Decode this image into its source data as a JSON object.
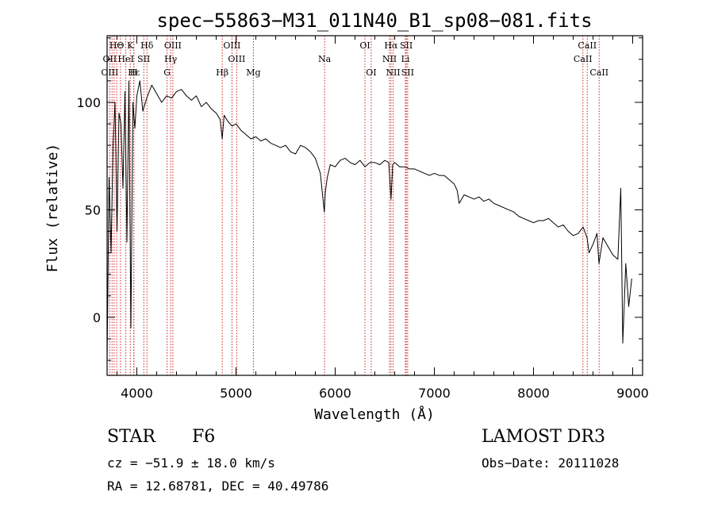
{
  "chart_data": {
    "type": "line",
    "title": "spec−55863−M31_011N40_B1_sp08−081.fits",
    "xlabel": "Wavelength (Å)",
    "ylabel": "Flux (relative)",
    "xlim": [
      3700,
      9100
    ],
    "ylim": [
      -27,
      131
    ],
    "x_ticks": [
      4000,
      5000,
      6000,
      7000,
      8000,
      9000
    ],
    "y_ticks": [
      0,
      50,
      100
    ],
    "x_tick_labels": [
      "4000",
      "5000",
      "6000",
      "7000",
      "8000",
      "9000"
    ],
    "y_tick_labels": [
      "0",
      "50",
      "100"
    ],
    "grid": false,
    "line_color": "#000000",
    "marker_color": "#cc2222",
    "series": [
      {
        "name": "flux",
        "x": [
          3700,
          3720,
          3740,
          3760,
          3780,
          3800,
          3820,
          3840,
          3860,
          3880,
          3900,
          3920,
          3940,
          3960,
          3980,
          4000,
          4030,
          4060,
          4100,
          4150,
          4200,
          4250,
          4300,
          4350,
          4400,
          4450,
          4500,
          4550,
          4600,
          4650,
          4700,
          4750,
          4800,
          4840,
          4861,
          4880,
          4920,
          4960,
          5000,
          5050,
          5100,
          5150,
          5200,
          5250,
          5300,
          5350,
          5400,
          5450,
          5500,
          5550,
          5600,
          5650,
          5700,
          5750,
          5800,
          5850,
          5890,
          5900,
          5920,
          5950,
          6000,
          6050,
          6100,
          6150,
          6200,
          6250,
          6300,
          6350,
          6400,
          6450,
          6500,
          6540,
          6563,
          6580,
          6600,
          6650,
          6700,
          6750,
          6800,
          6850,
          6900,
          6950,
          7000,
          7050,
          7100,
          7150,
          7200,
          7230,
          7250,
          7300,
          7350,
          7400,
          7450,
          7500,
          7550,
          7600,
          7650,
          7700,
          7750,
          7800,
          7850,
          7900,
          7950,
          8000,
          8050,
          8100,
          8150,
          8200,
          8250,
          8300,
          8350,
          8400,
          8450,
          8500,
          8540,
          8560,
          8600,
          8640,
          8660,
          8700,
          8750,
          8800,
          8850,
          8880,
          8900,
          8930,
          8960,
          8990
        ],
        "y": [
          -20,
          65,
          30,
          80,
          100,
          40,
          95,
          90,
          60,
          105,
          35,
          110,
          -5,
          100,
          88,
          103,
          110,
          96,
          102,
          108,
          104,
          100,
          103,
          102,
          105,
          106,
          103,
          101,
          103,
          98,
          100,
          97,
          95,
          92,
          83,
          94,
          91,
          89,
          90,
          87,
          85,
          83,
          84,
          82,
          83,
          81,
          80,
          79,
          80,
          77,
          76,
          80,
          79,
          77,
          74,
          67,
          49,
          58,
          65,
          71,
          70,
          73,
          74,
          72,
          71,
          73,
          70,
          72,
          72,
          71,
          73,
          72,
          55,
          71,
          72,
          70,
          70,
          69,
          69,
          68,
          67,
          66,
          67,
          66,
          66,
          64,
          62,
          59,
          53,
          57,
          56,
          55,
          56,
          54,
          55,
          53,
          52,
          51,
          50,
          49,
          47,
          46,
          45,
          44,
          45,
          45,
          46,
          44,
          42,
          43,
          40,
          38,
          39,
          42,
          37,
          30,
          34,
          39,
          25,
          37,
          33,
          29,
          27,
          60,
          -12,
          25,
          5,
          18
        ]
      }
    ],
    "line_labels": [
      {
        "label": "HΘ",
        "x": 3797,
        "row": 1
      },
      {
        "label": "OII",
        "x": 3727,
        "row": 2
      },
      {
        "label": "OIII",
        "x": 3727,
        "row": 3
      },
      {
        "label": "K",
        "x": 3934,
        "row": 1
      },
      {
        "label": "HeI",
        "x": 3889,
        "row": 2
      },
      {
        "label": "Hε",
        "x": 3970,
        "row": 3
      },
      {
        "label": "Hδ",
        "x": 4102,
        "row": 1
      },
      {
        "label": "SII",
        "x": 4070,
        "row": 2
      },
      {
        "label": "H",
        "x": 3969,
        "row": 3
      },
      {
        "label": "OIII",
        "x": 4363,
        "row": 1
      },
      {
        "label": "Hγ",
        "x": 4341,
        "row": 2
      },
      {
        "label": "G",
        "x": 4305,
        "row": 3
      },
      {
        "label": "OIII",
        "x": 4959,
        "row": 1
      },
      {
        "label": "OIII",
        "x": 5007,
        "row": 2
      },
      {
        "label": "Hβ",
        "x": 4861,
        "row": 3
      },
      {
        "label": "Mg",
        "x": 5175,
        "row": 3
      },
      {
        "label": "Na",
        "x": 5893,
        "row": 2
      },
      {
        "label": "OI",
        "x": 6300,
        "row": 1
      },
      {
        "label": "OI",
        "x": 6363,
        "row": 3
      },
      {
        "label": "Hα",
        "x": 6563,
        "row": 1
      },
      {
        "label": "NII",
        "x": 6548,
        "row": 2
      },
      {
        "label": "NII",
        "x": 6584,
        "row": 3
      },
      {
        "label": "SII",
        "x": 6717,
        "row": 1
      },
      {
        "label": "Li",
        "x": 6708,
        "row": 2
      },
      {
        "label": "SII",
        "x": 6731,
        "row": 3
      },
      {
        "label": "CaII",
        "x": 8542,
        "row": 1
      },
      {
        "label": "CaII",
        "x": 8498,
        "row": 2
      },
      {
        "label": "CaII",
        "x": 8662,
        "row": 3
      }
    ],
    "marker_lines": [
      3727,
      3750,
      3771,
      3797,
      3835,
      3889,
      3934,
      3969,
      3970,
      4070,
      4102,
      4305,
      4341,
      4363,
      4861,
      4959,
      5007,
      5175,
      5893,
      6300,
      6363,
      6548,
      6563,
      6584,
      6708,
      6717,
      6731,
      8498,
      8542,
      8662
    ]
  },
  "info": {
    "object_class": "STAR",
    "subclass": "F6",
    "survey": "LAMOST DR3",
    "redshift": "cz = −51.9 ± 18.0 km/s",
    "obs_date": "Obs−Date: 20111028",
    "coords": "RA =  12.68781, DEC =  40.49786"
  }
}
